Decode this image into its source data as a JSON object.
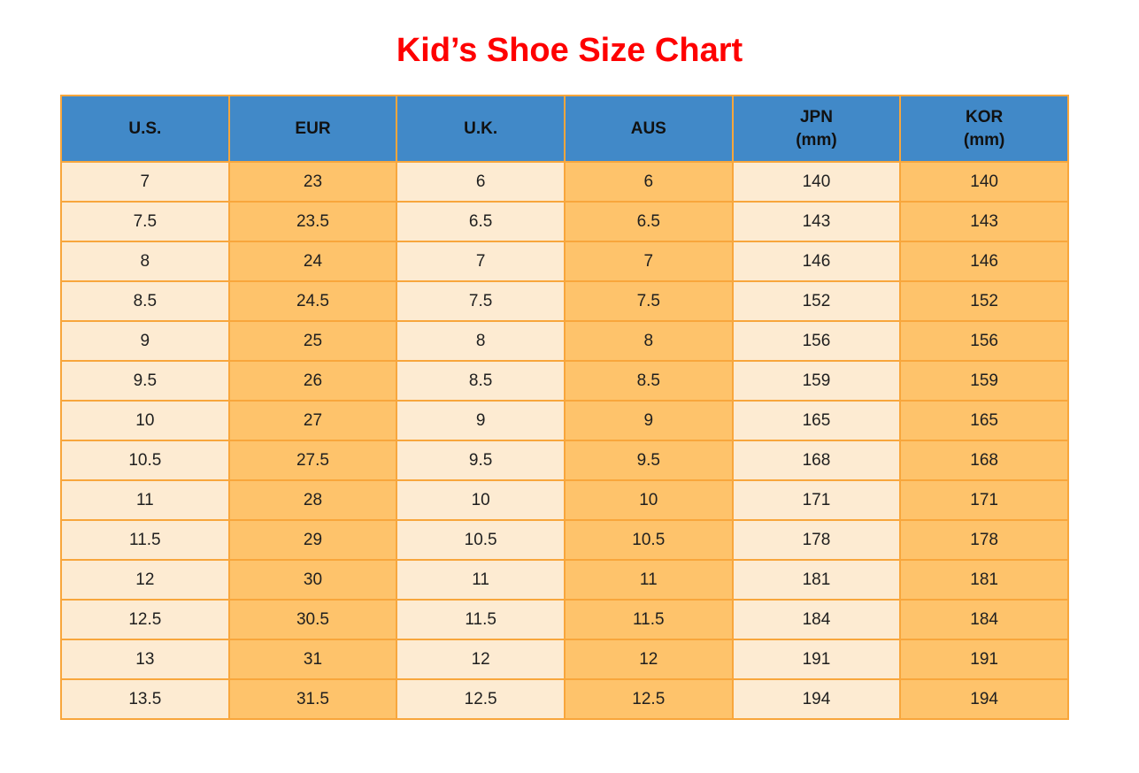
{
  "title": "Kid’s Shoe Size Chart",
  "colors": {
    "title_red": "#fe0000",
    "header_blue": "#4189c8",
    "cell_cream": "#fdebd2",
    "cell_orange": "#fec36b",
    "border_orange": "#f8a63c",
    "text": "#1f1f1f"
  },
  "table": {
    "columns": [
      {
        "id": "us",
        "label": "U.S."
      },
      {
        "id": "eur",
        "label": "EUR"
      },
      {
        "id": "uk",
        "label": "U.K."
      },
      {
        "id": "aus",
        "label": "AUS"
      },
      {
        "id": "jpn",
        "label": "JPN",
        "sublabel": "(mm)"
      },
      {
        "id": "kor",
        "label": "KOR",
        "sublabel": "(mm)"
      }
    ],
    "rows": [
      [
        "7",
        "23",
        "6",
        "6",
        "140",
        "140"
      ],
      [
        "7.5",
        "23.5",
        "6.5",
        "6.5",
        "143",
        "143"
      ],
      [
        "8",
        "24",
        "7",
        "7",
        "146",
        "146"
      ],
      [
        "8.5",
        "24.5",
        "7.5",
        "7.5",
        "152",
        "152"
      ],
      [
        "9",
        "25",
        "8",
        "8",
        "156",
        "156"
      ],
      [
        "9.5",
        "26",
        "8.5",
        "8.5",
        "159",
        "159"
      ],
      [
        "10",
        "27",
        "9",
        "9",
        "165",
        "165"
      ],
      [
        "10.5",
        "27.5",
        "9.5",
        "9.5",
        "168",
        "168"
      ],
      [
        "11",
        "28",
        "10",
        "10",
        "171",
        "171"
      ],
      [
        "11.5",
        "29",
        "10.5",
        "10.5",
        "178",
        "178"
      ],
      [
        "12",
        "30",
        "11",
        "11",
        "181",
        "181"
      ],
      [
        "12.5",
        "30.5",
        "11.5",
        "11.5",
        "184",
        "184"
      ],
      [
        "13",
        "31",
        "12",
        "12",
        "191",
        "191"
      ],
      [
        "13.5",
        "31.5",
        "12.5",
        "12.5",
        "194",
        "194"
      ]
    ]
  },
  "chart_data": {
    "type": "table",
    "title": "Kid’s Shoe Size Chart",
    "columns": [
      "U.S.",
      "EUR",
      "U.K.",
      "AUS",
      "JPN (mm)",
      "KOR (mm)"
    ],
    "rows": [
      [
        "7",
        "23",
        "6",
        "6",
        "140",
        "140"
      ],
      [
        "7.5",
        "23.5",
        "6.5",
        "6.5",
        "143",
        "143"
      ],
      [
        "8",
        "24",
        "7",
        "7",
        "146",
        "146"
      ],
      [
        "8.5",
        "24.5",
        "7.5",
        "7.5",
        "152",
        "152"
      ],
      [
        "9",
        "25",
        "8",
        "8",
        "156",
        "156"
      ],
      [
        "9.5",
        "26",
        "8.5",
        "8.5",
        "159",
        "159"
      ],
      [
        "10",
        "27",
        "9",
        "9",
        "165",
        "165"
      ],
      [
        "10.5",
        "27.5",
        "9.5",
        "9.5",
        "168",
        "168"
      ],
      [
        "11",
        "28",
        "10",
        "10",
        "171",
        "171"
      ],
      [
        "11.5",
        "29",
        "10.5",
        "10.5",
        "178",
        "178"
      ],
      [
        "12",
        "30",
        "11",
        "11",
        "181",
        "181"
      ],
      [
        "12.5",
        "30.5",
        "11.5",
        "11.5",
        "184",
        "184"
      ],
      [
        "13",
        "31",
        "12",
        "12",
        "191",
        "191"
      ],
      [
        "13.5",
        "31.5",
        "12.5",
        "12.5",
        "194",
        "194"
      ]
    ]
  }
}
